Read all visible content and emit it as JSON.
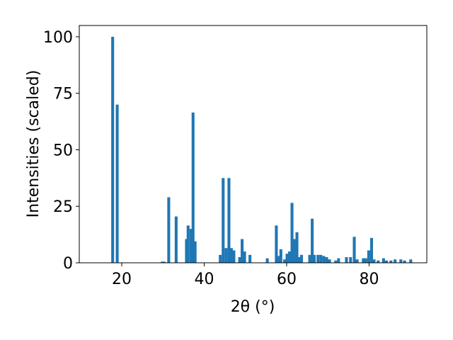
{
  "chart_data": {
    "type": "bar",
    "xlabel": "2θ (°)",
    "ylabel": "Intensities (scaled)",
    "x": [
      17.8,
      18.9,
      29.8,
      30.3,
      31.4,
      33.2,
      35.7,
      36.1,
      36.8,
      37.3,
      37.8,
      43.9,
      44.6,
      45.3,
      46.0,
      46.6,
      47.2,
      48.6,
      49.2,
      49.8,
      51.1,
      55.3,
      57.5,
      58.0,
      58.6,
      59.5,
      60.1,
      60.7,
      61.3,
      61.8,
      62.5,
      63.1,
      63.6,
      65.6,
      66.2,
      66.7,
      67.6,
      68.3,
      69.0,
      69.7,
      70.4,
      71.9,
      72.6,
      74.5,
      75.5,
      76.4,
      77.1,
      78.6,
      79.2,
      79.9,
      80.6,
      81.2,
      82.2,
      83.5,
      84.2,
      85.3,
      86.3,
      87.7,
      88.6,
      90.1
    ],
    "values": [
      100,
      70,
      0.5,
      0.5,
      29,
      20.5,
      10.5,
      16.5,
      15,
      66.5,
      9.5,
      3.5,
      37.5,
      6.5,
      37.5,
      6.5,
      5.5,
      2.5,
      10.5,
      5,
      3.5,
      2,
      16.5,
      3,
      6,
      1.5,
      4,
      5,
      26.5,
      10.5,
      13.5,
      2.5,
      3.5,
      3.5,
      19.5,
      3.5,
      3.5,
      3.5,
      3,
      2.5,
      1.5,
      1,
      2,
      2.5,
      2.5,
      11.5,
      1.5,
      2,
      2,
      5.5,
      11,
      1.5,
      1,
      2,
      1,
      1,
      1.5,
      1.5,
      1,
      1.5
    ],
    "color": "#1f77b4",
    "xlim": [
      9.7,
      94.0
    ],
    "xticks": [
      20,
      40,
      60,
      80
    ],
    "ylim": [
      0,
      105
    ],
    "yticks": [
      0,
      25,
      50,
      75,
      100
    ]
  }
}
